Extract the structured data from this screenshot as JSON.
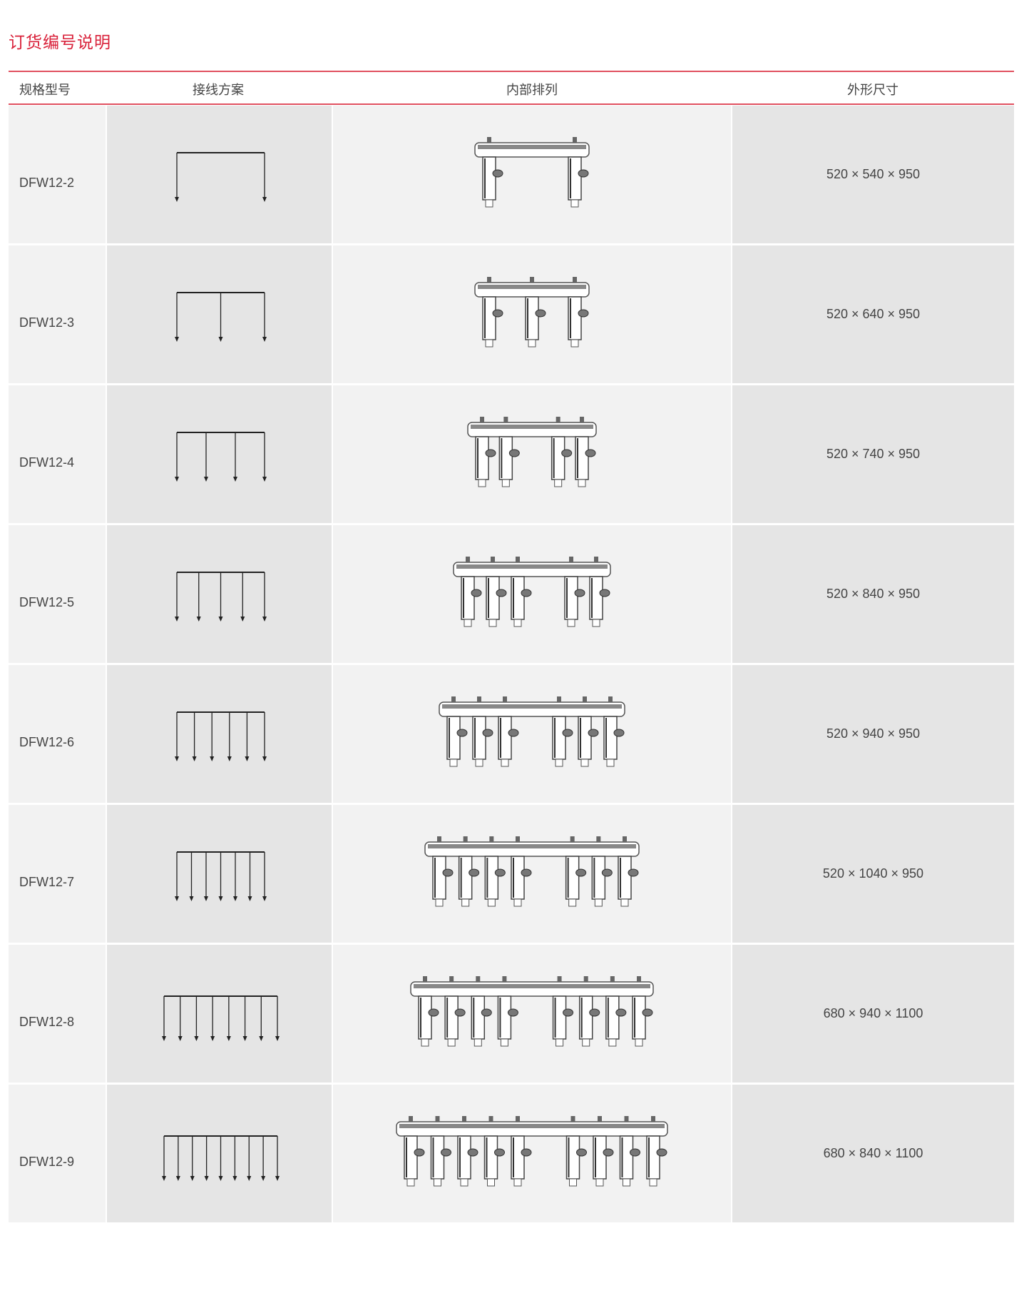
{
  "title": "订货编号说明",
  "headers": [
    "规格型号",
    "接线方案",
    "内部排列",
    "外形尺寸"
  ],
  "accent_color": "#d9213a",
  "rows": [
    {
      "model": "DFW12-2",
      "outlets": 2,
      "dims": "520 × 540 × 950"
    },
    {
      "model": "DFW12-3",
      "outlets": 3,
      "dims": "520 × 640 × 950"
    },
    {
      "model": "DFW12-4",
      "outlets": 4,
      "dims": "520 × 740 × 950"
    },
    {
      "model": "DFW12-5",
      "outlets": 5,
      "dims": "520 × 840 × 950"
    },
    {
      "model": "DFW12-6",
      "outlets": 6,
      "dims": "520 × 940 × 950"
    },
    {
      "model": "DFW12-7",
      "outlets": 7,
      "dims": "520 × 1040 × 950"
    },
    {
      "model": "DFW12-8",
      "outlets": 8,
      "dims": "680 × 940 × 1100"
    },
    {
      "model": "DFW12-9",
      "outlets": 9,
      "dims": "680 × 840 × 1100"
    }
  ]
}
